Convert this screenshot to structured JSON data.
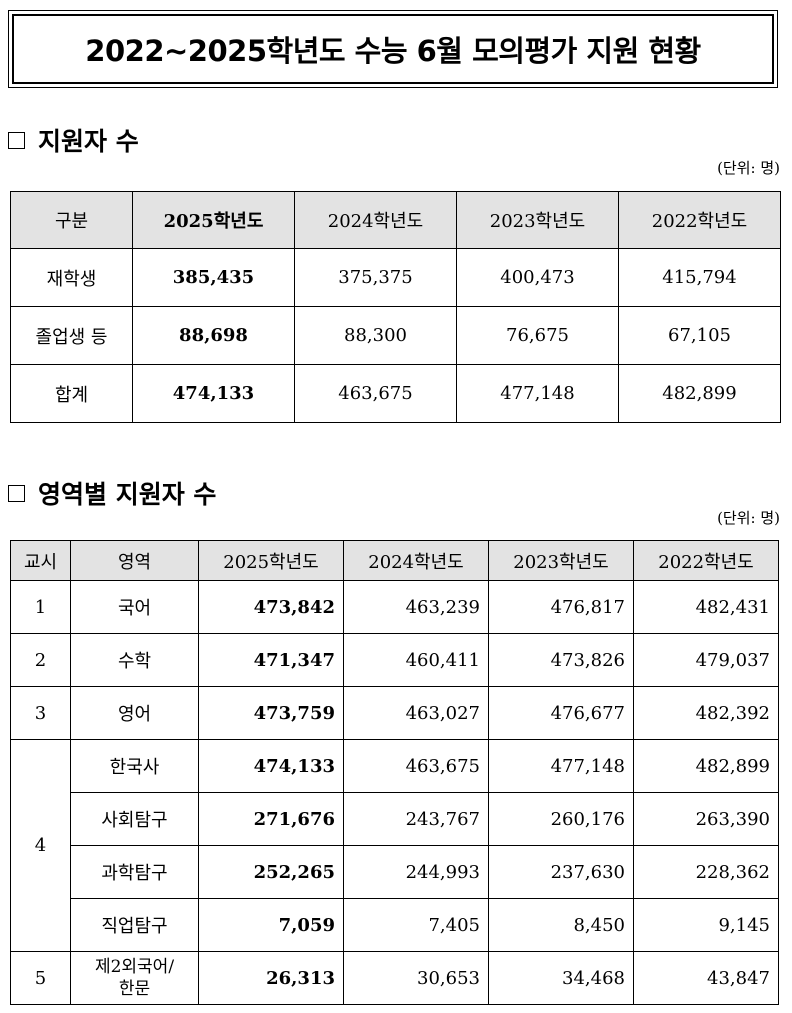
{
  "title": "2022~2025학년도 수능 6월 모의평가 지원 현황",
  "section1": {
    "heading": "지원자 수",
    "unit": "(단위: 명)",
    "headers": [
      "구분",
      "2025학년도",
      "2024학년도",
      "2023학년도",
      "2022학년도"
    ],
    "rows": [
      {
        "label": "재학생",
        "values": [
          "385,435",
          "375,375",
          "400,473",
          "415,794"
        ]
      },
      {
        "label": "졸업생 등",
        "values": [
          "88,698",
          "88,300",
          "76,675",
          "67,105"
        ]
      },
      {
        "label": "합계",
        "values": [
          "474,133",
          "463,675",
          "477,148",
          "482,899"
        ]
      }
    ]
  },
  "section2": {
    "heading": "영역별 지원자 수",
    "unit": "(단위: 명)",
    "headers": [
      "교시",
      "영역",
      "2025학년도",
      "2024학년도",
      "2023학년도",
      "2022학년도"
    ],
    "rows": [
      {
        "period": "1",
        "area": "국어",
        "values": [
          "473,842",
          "463,239",
          "476,817",
          "482,431"
        ]
      },
      {
        "period": "2",
        "area": "수학",
        "values": [
          "471,347",
          "460,411",
          "473,826",
          "479,037"
        ]
      },
      {
        "period": "3",
        "area": "영어",
        "values": [
          "473,759",
          "463,027",
          "476,677",
          "482,392"
        ]
      },
      {
        "period": "4",
        "area": "한국사",
        "values": [
          "474,133",
          "463,675",
          "477,148",
          "482,899"
        ]
      },
      {
        "period": "",
        "area": "사회탐구",
        "values": [
          "271,676",
          "243,767",
          "260,176",
          "263,390"
        ]
      },
      {
        "period": "",
        "area": "과학탐구",
        "values": [
          "252,265",
          "244,993",
          "237,630",
          "228,362"
        ]
      },
      {
        "period": "",
        "area": "직업탐구",
        "values": [
          "7,059",
          "7,405",
          "8,450",
          "9,145"
        ]
      },
      {
        "period": "5",
        "area": "제2외국어/\n한문",
        "area_line1": "제2외국어/",
        "area_line2": "한문",
        "values": [
          "26,313",
          "30,653",
          "34,468",
          "43,847"
        ]
      }
    ]
  }
}
